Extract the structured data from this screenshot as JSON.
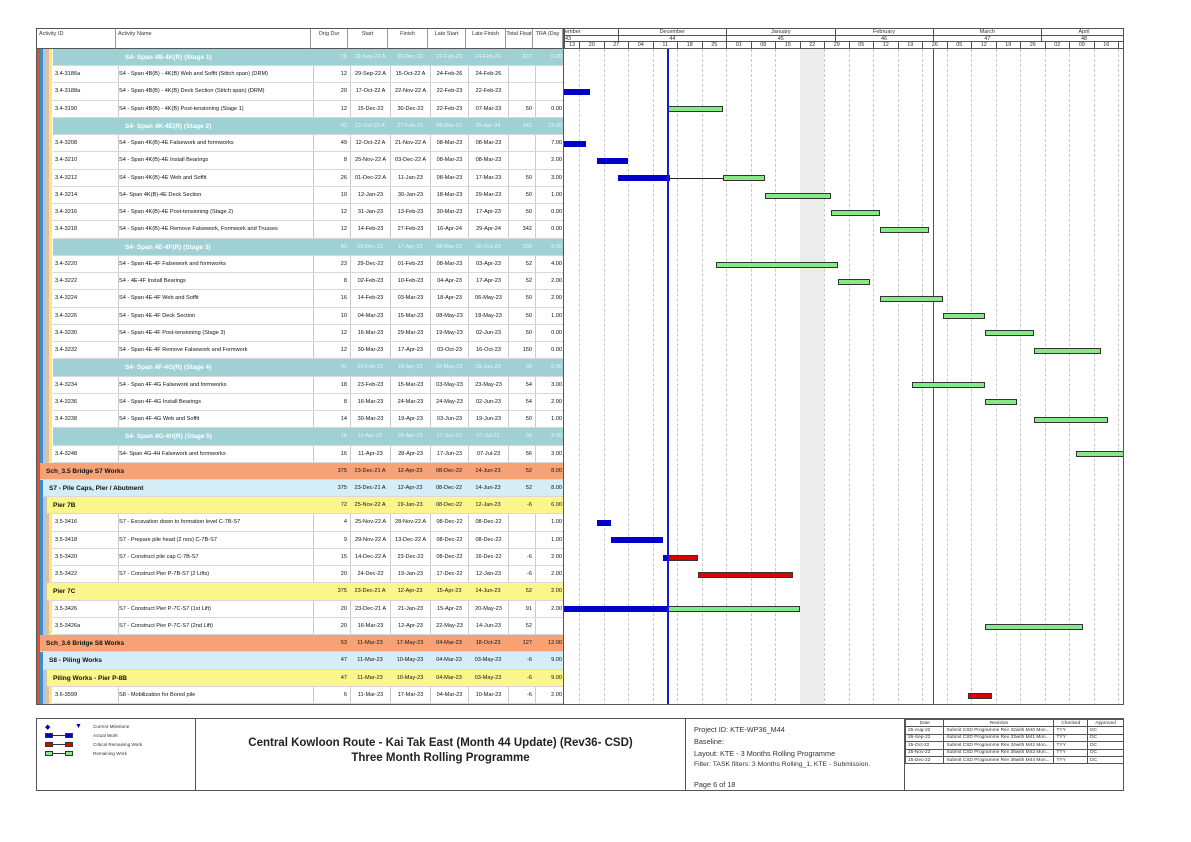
{
  "columns": {
    "id": "Activity ID",
    "name": "Activity Name",
    "dur": "Orig Dur",
    "start": "Start",
    "finish": "Finish",
    "ls": "Late Start",
    "lf": "Late Finish",
    "tf": "Total Float",
    "tra": "TRA (Day"
  },
  "timescale": {
    "months": [
      {
        "label": "ember",
        "start": "2022-11-01"
      },
      {
        "label": "December",
        "start": "2022-12-01"
      },
      {
        "label": "January",
        "start": "2023-01-01"
      },
      {
        "label": "February",
        "start": "2023-02-01"
      },
      {
        "label": "March",
        "start": "2023-03-01"
      },
      {
        "label": "April",
        "start": "2023-04-01"
      }
    ],
    "periods": [
      "43",
      "44",
      "45",
      "46",
      "47",
      "48"
    ],
    "weeks": [
      "13",
      "20",
      "27",
      "04",
      "11",
      "18",
      "25",
      "01",
      "08",
      "15",
      "22",
      "29",
      "05",
      "12",
      "19",
      "26",
      "05",
      "12",
      "19",
      "26",
      "02",
      "09",
      "16",
      "23"
    ],
    "first_week": "2022-11-13",
    "data_date": "2022-12-15",
    "holiday": {
      "from": "2023-01-22",
      "to": "2023-01-28"
    },
    "milestone_line": "2023-03-01"
  },
  "colors": {
    "actual": "#0000c8",
    "critical": "#dd0000",
    "remaining": "#86e886",
    "stage": "#9fd0d3",
    "sch": "#f6a274",
    "sub": "#d4edf6",
    "pier": "#fbf68c",
    "data_date": "#1a1ad0"
  },
  "rows": [
    {
      "t": "stage",
      "id": "",
      "name": "S4- Span 4B-4K(R) (Stage 1)",
      "dur": "76",
      "start": "29-Sep-22 A",
      "finish": "30-Dec-22",
      "ls": "22-Feb-23",
      "lf": "24-Feb-26",
      "tf": "637",
      "tra": "0.00",
      "bars": []
    },
    {
      "t": "act",
      "id": "3.4-3186a",
      "name": "S4 - Span 4B(B) - 4K(B) Web and Soffit (Stitch span) (DRM)",
      "dur": "12",
      "start": "29-Sep-22 A",
      "finish": "15-Oct-22 A",
      "ls": "24-Feb-26",
      "lf": "24-Feb-26",
      "tf": "",
      "tra": "",
      "bars": []
    },
    {
      "t": "act",
      "id": "3.4-3188a",
      "name": "S4 - Span 4B(B) - 4K(B) Deck Section (Stitch span) (DRM)",
      "dur": "20",
      "start": "17-Oct-22 A",
      "finish": "22-Nov-22 A",
      "ls": "22-Feb-23",
      "lf": "22-Feb-23",
      "tf": "",
      "tra": "",
      "bars": [
        [
          "actual",
          "2022-10-17",
          "2022-11-22"
        ]
      ]
    },
    {
      "t": "act",
      "id": "3.4-3190",
      "name": "S4 - Span 4B(B) - 4K(B) Post-tensioning (Stage 1)",
      "dur": "12",
      "start": "15-Dec-22",
      "finish": "30-Dec-22",
      "ls": "22-Feb-23",
      "lf": "07-Mar-23",
      "tf": "50",
      "tra": "0.00",
      "bars": [
        [
          "remaining",
          "2022-12-15",
          "2022-12-30"
        ]
      ]
    },
    {
      "t": "stage",
      "id": "",
      "name": "S4- Span 4K-4E(R) (Stage 2)",
      "dur": "93",
      "start": "12-Oct-22 A",
      "finish": "27-Feb-23",
      "ls": "08-Mar-23",
      "lf": "29-Apr-24",
      "tf": "342",
      "tra": "13.00",
      "bars": []
    },
    {
      "t": "act",
      "id": "3.4-3208",
      "name": "S4 - Span 4K(B)-4E Falsework and formworks",
      "dur": "49",
      "start": "12-Oct-22 A",
      "finish": "21-Nov-22 A",
      "ls": "08-Mar-23",
      "lf": "08-Mar-23",
      "tf": "",
      "tra": "7.00",
      "bars": [
        [
          "actual",
          "2022-10-12",
          "2022-11-21"
        ]
      ]
    },
    {
      "t": "act",
      "id": "3.4-3210",
      "name": "S4 - Span 4K(B)-4E Install Bearings",
      "dur": "8",
      "start": "25-Nov-22 A",
      "finish": "03-Dec-22 A",
      "ls": "08-Mar-23",
      "lf": "08-Mar-23",
      "tf": "",
      "tra": "2.00",
      "bars": [
        [
          "actual",
          "2022-11-25",
          "2022-12-03"
        ]
      ]
    },
    {
      "t": "act",
      "id": "3.4-3212",
      "name": "S4 - Span 4K(B)-4E Web and Soffit",
      "dur": "26",
      "start": "01-Dec-22 A",
      "finish": "11-Jan-23",
      "ls": "08-Mar-23",
      "lf": "17-Mar-23",
      "tf": "50",
      "tra": "3.00",
      "bars": [
        [
          "actual",
          "2022-12-01",
          "2022-12-15"
        ],
        [
          "link",
          "2022-12-16",
          "2022-12-30"
        ],
        [
          "remaining",
          "2022-12-31",
          "2023-01-11"
        ]
      ]
    },
    {
      "t": "act",
      "id": "3.4-3214",
      "name": "S4- Span 4K(B)-4E Deck Section",
      "dur": "10",
      "start": "12-Jan-23",
      "finish": "30-Jan-23",
      "ls": "18-Mar-23",
      "lf": "29-Mar-23",
      "tf": "50",
      "tra": "1.00",
      "bars": [
        [
          "remaining",
          "2023-01-12",
          "2023-01-30"
        ]
      ]
    },
    {
      "t": "act",
      "id": "3.4-3216",
      "name": "S4 - Span 4K(B)-4E Post-tensioning (Stage 2)",
      "dur": "12",
      "start": "31-Jan-23",
      "finish": "13-Feb-23",
      "ls": "30-Mar-23",
      "lf": "17-Apr-23",
      "tf": "50",
      "tra": "0.00",
      "bars": [
        [
          "remaining",
          "2023-01-31",
          "2023-02-13"
        ]
      ]
    },
    {
      "t": "act",
      "id": "3.4-3218",
      "name": "S4 - Span 4K(B)-4E Remove Falsework, Formwork and Trusses",
      "dur": "12",
      "start": "14-Feb-23",
      "finish": "27-Feb-23",
      "ls": "16-Apr-24",
      "lf": "29-Apr-24",
      "tf": "342",
      "tra": "0.00",
      "bars": [
        [
          "remaining",
          "2023-02-14",
          "2023-02-27"
        ]
      ]
    },
    {
      "t": "stage",
      "id": "",
      "name": "S4- Span 4E-4F(R) (Stage 3)",
      "dur": "83",
      "start": "29-Dec-22",
      "finish": "17-Apr-23",
      "ls": "08-Mar-23",
      "lf": "16-Oct-23",
      "tf": "150",
      "tra": "9.00",
      "bars": []
    },
    {
      "t": "act",
      "id": "3.4-3220",
      "name": "S4 - Span 4E-4F Falsework and formworks",
      "dur": "23",
      "start": "29-Dec-22",
      "finish": "01-Feb-23",
      "ls": "08-Mar-23",
      "lf": "03-Apr-23",
      "tf": "52",
      "tra": "4.00",
      "bars": [
        [
          "remaining",
          "2022-12-29",
          "2023-02-01"
        ]
      ]
    },
    {
      "t": "act",
      "id": "3.4-3222",
      "name": "S4 - 4E-4F Install Bearings",
      "dur": "8",
      "start": "02-Feb-23",
      "finish": "10-Feb-23",
      "ls": "04-Apr-23",
      "lf": "17-Apr-23",
      "tf": "52",
      "tra": "2.00",
      "bars": [
        [
          "remaining",
          "2023-02-02",
          "2023-02-10"
        ]
      ]
    },
    {
      "t": "act",
      "id": "3.4-3224",
      "name": "S4 - Span 4E-4F Web and Soffit",
      "dur": "16",
      "start": "14-Feb-23",
      "finish": "03-Mar-23",
      "ls": "18-Apr-23",
      "lf": "06-May-23",
      "tf": "50",
      "tra": "2.00",
      "bars": [
        [
          "remaining",
          "2023-02-14",
          "2023-03-03"
        ]
      ]
    },
    {
      "t": "act",
      "id": "3.4-3226",
      "name": "S4 - Span 4E-4F Deck Section",
      "dur": "10",
      "start": "04-Mar-23",
      "finish": "15-Mar-23",
      "ls": "08-May-23",
      "lf": "18-May-23",
      "tf": "50",
      "tra": "1.00",
      "bars": [
        [
          "remaining",
          "2023-03-04",
          "2023-03-15"
        ]
      ]
    },
    {
      "t": "act",
      "id": "3.4-3230",
      "name": "S4 - Span 4E-4F Post-tensioning (Stage 3)",
      "dur": "12",
      "start": "16-Mar-23",
      "finish": "29-Mar-23",
      "ls": "19-May-23",
      "lf": "02-Jun-23",
      "tf": "50",
      "tra": "0.00",
      "bars": [
        [
          "remaining",
          "2023-03-16",
          "2023-03-29"
        ]
      ]
    },
    {
      "t": "act",
      "id": "3.4-3232",
      "name": "S4 - Span 4E-4F Remove Falsework and Formwork",
      "dur": "12",
      "start": "30-Mar-23",
      "finish": "17-Apr-23",
      "ls": "03-Oct-23",
      "lf": "16-Oct-23",
      "tf": "150",
      "tra": "0.00",
      "bars": [
        [
          "remaining",
          "2023-03-30",
          "2023-04-17"
        ]
      ]
    },
    {
      "t": "stage",
      "id": "",
      "name": "S4- Span 4F-4G(R) (Stage 4)",
      "dur": "41",
      "start": "23-Feb-23",
      "finish": "19-Apr-23",
      "ls": "03-May-23",
      "lf": "19-Jun-23",
      "tf": "50",
      "tra": "6.00",
      "bars": []
    },
    {
      "t": "act",
      "id": "3.4-3234",
      "name": "S4 - Span 4F-4G Falsework and formworks",
      "dur": "18",
      "start": "23-Feb-23",
      "finish": "15-Mar-23",
      "ls": "03-May-23",
      "lf": "23-May-23",
      "tf": "54",
      "tra": "3.00",
      "bars": [
        [
          "remaining",
          "2023-02-23",
          "2023-03-15"
        ]
      ]
    },
    {
      "t": "act",
      "id": "3.4-3236",
      "name": "S4 - Span 4F-4G  Install Bearings",
      "dur": "8",
      "start": "16-Mar-23",
      "finish": "24-Mar-23",
      "ls": "24-May-23",
      "lf": "02-Jun-23",
      "tf": "54",
      "tra": "2.00",
      "bars": [
        [
          "remaining",
          "2023-03-16",
          "2023-03-24"
        ]
      ]
    },
    {
      "t": "act",
      "id": "3.4-3238",
      "name": "S4 - Span 4F-4G Web and Soffit",
      "dur": "14",
      "start": "30-Mar-23",
      "finish": "19-Apr-23",
      "ls": "03-Jun-23",
      "lf": "19-Jun-23",
      "tf": "50",
      "tra": "1.00",
      "bars": [
        [
          "remaining",
          "2023-03-30",
          "2023-04-19"
        ]
      ]
    },
    {
      "t": "stage",
      "id": "",
      "name": "S4- Span 4G-4H(R) (Stage 5)",
      "dur": "16",
      "start": "11-Apr-23",
      "finish": "28-Apr-23",
      "ls": "17-Jun-23",
      "lf": "07-Jul-23",
      "tf": "56",
      "tra": "3.00",
      "bars": []
    },
    {
      "t": "act",
      "id": "3.4-3248",
      "name": "S4- Span 4G-4H Falsework and formworks",
      "dur": "16",
      "start": "11-Apr-23",
      "finish": "28-Apr-23",
      "ls": "17-Jun-23",
      "lf": "07-Jul-23",
      "tf": "56",
      "tra": "3.00",
      "bars": [
        [
          "remaining",
          "2023-04-11",
          "2023-04-28"
        ]
      ]
    },
    {
      "t": "sch",
      "id": "",
      "name": "Sch_3.5 Bridge S7 Works",
      "dur": "375",
      "start": "23-Dec-21 A",
      "finish": "12-Apr-23",
      "ls": "08-Dec-22",
      "lf": "14-Jun-23",
      "tf": "52",
      "tra": "8.00",
      "bars": []
    },
    {
      "t": "sub",
      "id": "",
      "name": "S7 - Pile Caps, Pier / Abutment",
      "dur": "375",
      "start": "23-Dec-21 A",
      "finish": "12-Apr-23",
      "ls": "08-Dec-22",
      "lf": "14-Jun-23",
      "tf": "52",
      "tra": "8.00",
      "bars": []
    },
    {
      "t": "pier",
      "id": "",
      "name": "Pier 7B",
      "dur": "72",
      "start": "25-Nov-22 A",
      "finish": "19-Jan-23",
      "ls": "08-Dec-22",
      "lf": "12-Jan-23",
      "tf": "-6",
      "tra": "6.00",
      "bars": []
    },
    {
      "t": "act",
      "id": "3.5-3416",
      "name": "S7 - Excavation down to formation level C-7B-S7",
      "dur": "4",
      "start": "25-Nov-22 A",
      "finish": "28-Nov-22 A",
      "ls": "08-Dec-22",
      "lf": "08-Dec-22",
      "tf": "",
      "tra": "1.00",
      "bars": [
        [
          "actual",
          "2022-11-25",
          "2022-11-28"
        ]
      ]
    },
    {
      "t": "act",
      "id": "3.5-3418",
      "name": "S7 - Prepare pile head (2 nos) C-7B-S7",
      "dur": "9",
      "start": "29-Nov-22 A",
      "finish": "13-Dec-22 A",
      "ls": "08-Dec-22",
      "lf": "08-Dec-22",
      "tf": "",
      "tra": "1.00",
      "bars": [
        [
          "actual",
          "2022-11-29",
          "2022-12-13"
        ]
      ]
    },
    {
      "t": "act",
      "id": "3.5-3420",
      "name": "S7 - Construct pile cap C-7B-S7",
      "dur": "15",
      "start": "14-Dec-22 A",
      "finish": "23-Dec-22",
      "ls": "08-Dec-22",
      "lf": "16-Dec-22",
      "tf": "-6",
      "tra": "2.00",
      "bars": [
        [
          "actual",
          "2022-12-14",
          "2022-12-14"
        ],
        [
          "critical",
          "2022-12-15",
          "2022-12-23"
        ]
      ]
    },
    {
      "t": "act",
      "id": "3.5-3422",
      "name": "S7 - Construct Pier P-7B-S7 (2 Lifts)",
      "dur": "20",
      "start": "24-Dec-22",
      "finish": "19-Jan-23",
      "ls": "17-Dec-22",
      "lf": "12-Jan-23",
      "tf": "-6",
      "tra": "2.00",
      "bars": [
        [
          "critical",
          "2022-12-24",
          "2023-01-19"
        ]
      ]
    },
    {
      "t": "pier",
      "id": "",
      "name": "Pier 7C",
      "dur": "375",
      "start": "23-Dec-21 A",
      "finish": "12-Apr-23",
      "ls": "15-Apr-23",
      "lf": "14-Jun-23",
      "tf": "52",
      "tra": "2.00",
      "bars": []
    },
    {
      "t": "act",
      "id": "3.5-3426",
      "name": "S7 - Construct Pier P-7C-S7 (1st Lift)",
      "dur": "20",
      "start": "23-Dec-21 A",
      "finish": "21-Jan-23",
      "ls": "15-Apr-23",
      "lf": "20-May-23",
      "tf": "91",
      "tra": "2.00",
      "bars": [
        [
          "actual",
          "2021-12-23",
          "2022-12-14"
        ],
        [
          "remaining",
          "2022-12-15",
          "2023-01-21"
        ]
      ]
    },
    {
      "t": "act",
      "id": "3.5-3426a",
      "name": "S7 - Construct Pier P-7C-S7 (2nd Lift)",
      "dur": "20",
      "start": "16-Mar-23",
      "finish": "12-Apr-23",
      "ls": "22-May-23",
      "lf": "14-Jun-23",
      "tf": "52",
      "tra": "",
      "bars": [
        [
          "remaining",
          "2023-03-16",
          "2023-04-12"
        ]
      ]
    },
    {
      "t": "sch",
      "id": "",
      "name": "Sch_3.6 Bridge S8 Works",
      "dur": "53",
      "start": "11-Mar-23",
      "finish": "17-May-23",
      "ls": "04-Mar-23",
      "lf": "18-Oct-23",
      "tf": "127",
      "tra": "12.00",
      "bars": []
    },
    {
      "t": "sub",
      "id": "",
      "name": "S8 - Piling Works",
      "dur": "47",
      "start": "11-Mar-23",
      "finish": "10-May-23",
      "ls": "04-Mar-23",
      "lf": "03-May-23",
      "tf": "-6",
      "tra": "9.00",
      "bars": []
    },
    {
      "t": "pier",
      "id": "",
      "name": "Piling Works - Pier P-8B",
      "dur": "47",
      "start": "11-Mar-23",
      "finish": "10-May-23",
      "ls": "04-Mar-23",
      "lf": "03-May-23",
      "tf": "-6",
      "tra": "9.00",
      "bars": []
    },
    {
      "t": "act",
      "id": "3.6-3599",
      "name": "S8 - Mobilization for Bored pile",
      "dur": "6",
      "start": "11-Mar-23",
      "finish": "17-Mar-23",
      "ls": "04-Mar-23",
      "lf": "10-Mar-23",
      "tf": "-6",
      "tra": "2.00",
      "bars": [
        [
          "critical",
          "2023-03-11",
          "2023-03-17"
        ]
      ]
    }
  ],
  "legend": [
    {
      "type": "milestone",
      "label": "Current Milestone"
    },
    {
      "type": "actual",
      "label": "Actual Work"
    },
    {
      "type": "critical",
      "label": "Critical Remaining Work"
    },
    {
      "type": "remaining",
      "label": "Remaining Work"
    }
  ],
  "footer": {
    "title": "Central Kowloon Route - Kai Tak East (Month 44 Update) (Rev36- CSD)",
    "subtitle": "Three Month Rolling Programme",
    "project_id": "Project ID: KTE-WP36_M44",
    "baseline": "Baseline:",
    "layout": "Layout: KTE - 3 Months Rolling Programme",
    "filter": "Filter: TASK filters: 3 Months Rolling_1, KTE - Submission.",
    "page": "Page 6 of 18",
    "rev_headers": [
      "Date",
      "Revision",
      "Checked",
      "Approved"
    ],
    "revisions": [
      [
        "25-Aug-22",
        "Submit CSD Programme Rev 32with M40 Mon...",
        "TYY",
        "DC"
      ],
      [
        "26-Sep-22",
        "Submit CSD Programme Rev 33with M41 Mon...",
        "TYY",
        "DC"
      ],
      [
        "25-Oct-22",
        "Submit CSD Programme Rev 34with M42 Mon...",
        "TYY",
        "DC"
      ],
      [
        "25-Nov-22",
        "Submit CSD Programme Rev 35with M43 Mon...",
        "TYY",
        "DC"
      ],
      [
        "15-Dec-22",
        "Submit CSD Programme Rev 36with M44 Mon...",
        "TYY",
        "DC"
      ]
    ]
  }
}
